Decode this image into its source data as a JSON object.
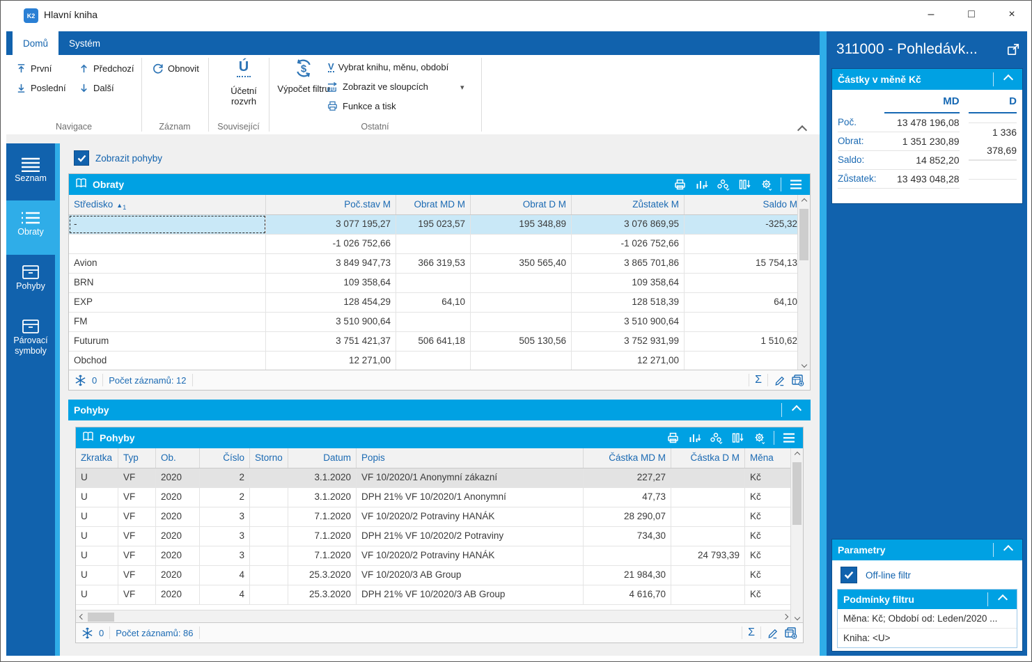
{
  "window": {
    "title": "Hlavní kniha"
  },
  "icons": {
    "minimize": "–",
    "maximize": "□",
    "close": "×",
    "dropdown": "▾",
    "sigma": "Σ"
  },
  "ribbon": {
    "tabs": [
      {
        "label": "Domů"
      },
      {
        "label": "Systém"
      }
    ],
    "nav": {
      "first": "První",
      "previous": "Předchozí",
      "last": "Poslední",
      "next": "Další"
    },
    "record": {
      "refresh": "Obnovit"
    },
    "related": {
      "chart_of_accounts": "Účetní rozvrh"
    },
    "other": {
      "filter_calc": "Výpočet filtru",
      "select_book": "Vybrat knihu, měnu, období",
      "show_columns": "Zobrazit ve sloupcích",
      "functions_print": "Funkce a tisk"
    },
    "groups": {
      "navigation": "Navigace",
      "record": "Záznam",
      "related": "Související",
      "other": "Ostatní"
    }
  },
  "sidebar": {
    "items": [
      {
        "label": "Seznam",
        "active": false
      },
      {
        "label": "Obraty",
        "active": true
      },
      {
        "label": "Pohyby",
        "active": false
      },
      {
        "label": "Párovací symboly",
        "active": false
      }
    ]
  },
  "main": {
    "show_movements": "Zobrazit pohyby",
    "obraty": {
      "title": "Obraty",
      "grid": {
        "columns": [
          "Středisko",
          "Poč.stav M",
          "Obrat MD M",
          "Obrat D M",
          "Zůstatek M",
          "Saldo M"
        ],
        "sort": {
          "col": 0,
          "marker": "▲",
          "index": "1"
        },
        "rows": [
          {
            "selected": true,
            "focused": true,
            "cells": [
              "-",
              "3 077 195,27",
              "195 023,57",
              "195 348,89",
              "3 076 869,95",
              "-325,32"
            ]
          },
          {
            "cells": [
              "",
              "-1 026 752,66",
              "",
              "",
              "-1 026 752,66",
              ""
            ]
          },
          {
            "cells": [
              "Avion",
              "3 849 947,73",
              "366 319,53",
              "350 565,40",
              "3 865 701,86",
              "15 754,13"
            ]
          },
          {
            "cells": [
              "BRN",
              "109 358,64",
              "",
              "",
              "109 358,64",
              ""
            ]
          },
          {
            "cells": [
              "EXP",
              "128 454,29",
              "64,10",
              "",
              "128 518,39",
              "64,10"
            ]
          },
          {
            "cells": [
              "FM",
              "3 510 900,64",
              "",
              "",
              "3 510 900,64",
              ""
            ]
          },
          {
            "cells": [
              "Futurum",
              "3 751 421,37",
              "506 641,18",
              "505 130,56",
              "3 752 931,99",
              "1 510,62"
            ]
          },
          {
            "cells": [
              "Obchod",
              "12 271,00",
              "",
              "",
              "12 271,00",
              ""
            ]
          }
        ]
      },
      "footer": {
        "frozen": "0",
        "count": "Počet záznamů: 12"
      }
    },
    "pohyby_section": "Pohyby",
    "pohyby": {
      "title": "Pohyby",
      "grid": {
        "columns": [
          "Zkratka",
          "Typ",
          "Ob.",
          "Číslo",
          "Storno",
          "Datum",
          "Popis",
          "Částka MD M",
          "Částka D M",
          "Měna"
        ],
        "rows": [
          {
            "selected": true,
            "cells": [
              "U",
              "VF",
              "2020",
              "2",
              "",
              "3.1.2020",
              "VF 10/2020/1 Anonymní zákazní",
              "227,27",
              "",
              "Kč"
            ]
          },
          {
            "cells": [
              "U",
              "VF",
              "2020",
              "2",
              "",
              "3.1.2020",
              "DPH 21% VF 10/2020/1 Anonymní",
              "47,73",
              "",
              "Kč"
            ]
          },
          {
            "cells": [
              "U",
              "VF",
              "2020",
              "3",
              "",
              "7.1.2020",
              "VF 10/2020/2 Potraviny HANÁK",
              "28 290,07",
              "",
              "Kč"
            ]
          },
          {
            "cells": [
              "U",
              "VF",
              "2020",
              "3",
              "",
              "7.1.2020",
              "DPH 21% VF 10/2020/2 Potraviny",
              "734,30",
              "",
              "Kč"
            ]
          },
          {
            "cells": [
              "U",
              "VF",
              "2020",
              "3",
              "",
              "7.1.2020",
              "VF 10/2020/2 Potraviny HANÁK",
              "",
              "24 793,39",
              "Kč"
            ]
          },
          {
            "cells": [
              "U",
              "VF",
              "2020",
              "4",
              "",
              "25.3.2020",
              "VF 10/2020/3 AB Group",
              "21 984,30",
              "",
              "Kč"
            ]
          },
          {
            "cells": [
              "U",
              "VF",
              "2020",
              "4",
              "",
              "25.3.2020",
              "DPH 21% VF 10/2020/3 AB Group",
              "4 616,70",
              "",
              "Kč"
            ]
          }
        ]
      },
      "footer": {
        "frozen": "0",
        "count": "Počet záznamů: 86"
      }
    }
  },
  "right": {
    "title": "311000 - Pohledávk...",
    "amounts": {
      "header": "Částky v měně Kč",
      "col_md": "MD",
      "col_d": "D",
      "rows": [
        {
          "label": "Poč.",
          "md": "13 478 196,08",
          "d": ""
        },
        {
          "label": "Obrat:",
          "md": "1 351 230,89",
          "d": "1 336 378,69"
        },
        {
          "label": "Saldo:",
          "md": "14 852,20",
          "d": ""
        },
        {
          "label": "Zůstatek:",
          "md": "13 493 048,28",
          "d": ""
        }
      ]
    },
    "parameters": {
      "header": "Parametry",
      "offline": "Off-line filtr",
      "conditions": {
        "header": "Podmínky filtru",
        "line1": "Měna: Kč; Období od: Leden/2020 ...",
        "line2": "Kniha: <U>"
      }
    }
  },
  "colors": {
    "accent_blue": "#1162ad",
    "header_cyan": "#00a1e3",
    "strip_cyan": "#2fade8",
    "selection_cyan": "#c9e8f7"
  }
}
